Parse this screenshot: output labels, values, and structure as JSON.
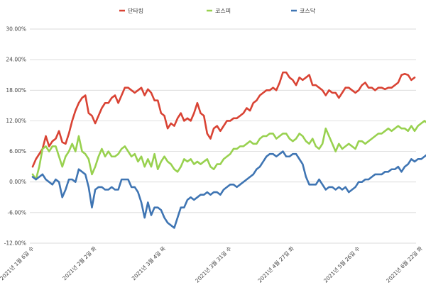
{
  "chart_data": {
    "type": "line",
    "title": "",
    "xlabel": "",
    "ylabel": "",
    "ylim": [
      -12,
      30
    ],
    "yticks": [
      -12,
      -6,
      0,
      6,
      12,
      18,
      24,
      30
    ],
    "ytick_labels": [
      "-12.00%",
      "-6.00%",
      "0.00%",
      "6.00%",
      "12.00%",
      "18.00%",
      "24.00%",
      "30.00%"
    ],
    "x_start_date": "2021-01-06",
    "xtick_labels": [
      "2021년 1월 6일 수",
      "2021년 2월 2일 화",
      "2021년 3월 4일 목",
      "2021년 3월 31일 수",
      "2021년 4월 27일 화",
      "2021년 5월 26일 수",
      "2021년 6월 22일 화"
    ],
    "grid": true,
    "legend_position": "top-center",
    "series": [
      {
        "name": "단타킹",
        "color": "#d94334",
        "values": [
          3.0,
          4.5,
          5.5,
          6.5,
          9.0,
          7.0,
          8.0,
          8.5,
          10.0,
          7.8,
          7.5,
          9.5,
          12.0,
          14.0,
          15.5,
          16.5,
          17.0,
          13.5,
          13.0,
          11.5,
          13.0,
          14.5,
          15.5,
          15.5,
          16.5,
          17.0,
          15.5,
          17.0,
          18.5,
          18.5,
          18.0,
          17.5,
          18.0,
          18.5,
          17.0,
          18.2,
          17.5,
          16.0,
          16.0,
          13.5,
          13.0,
          10.5,
          11.5,
          11.0,
          12.5,
          13.5,
          12.0,
          12.5,
          12.0,
          13.5,
          15.5,
          13.5,
          13.0,
          9.5,
          8.5,
          10.5,
          11.0,
          10.0,
          11.0,
          12.0,
          12.0,
          12.5,
          12.5,
          13.0,
          13.5,
          14.5,
          14.0,
          15.5,
          16.0,
          17.0,
          17.5,
          18.0,
          18.0,
          18.5,
          18.0,
          19.5,
          21.5,
          21.5,
          20.5,
          20.0,
          19.0,
          20.5,
          20.0,
          20.5,
          21.0,
          19.0,
          19.0,
          18.5,
          18.0,
          17.0,
          18.0,
          17.5,
          17.5,
          16.5,
          17.5,
          18.5,
          18.5,
          18.0,
          17.5,
          18.0,
          19.0,
          19.5,
          18.5,
          18.5,
          18.0,
          18.5,
          18.5,
          18.2,
          18.5,
          18.5,
          19.0,
          19.5,
          21.0,
          21.2,
          21.0,
          20.0,
          20.5
        ]
      },
      {
        "name": "코스피",
        "color": "#98d14f",
        "values": [
          1.5,
          0.5,
          3.0,
          6.5,
          7.0,
          6.0,
          7.0,
          7.0,
          5.0,
          3.0,
          5.0,
          6.0,
          7.5,
          6.0,
          9.0,
          6.0,
          5.5,
          4.5,
          1.5,
          3.0,
          5.0,
          6.5,
          5.0,
          6.0,
          5.0,
          5.0,
          5.5,
          6.5,
          7.0,
          6.0,
          5.0,
          5.5,
          4.0,
          5.0,
          3.0,
          4.5,
          3.0,
          5.5,
          2.5,
          4.0,
          5.0,
          4.0,
          3.5,
          2.5,
          2.0,
          3.0,
          4.5,
          4.0,
          4.5,
          3.5,
          4.0,
          3.5,
          4.0,
          4.5,
          3.0,
          2.5,
          3.5,
          3.5,
          4.5,
          5.0,
          5.5,
          6.5,
          6.5,
          7.0,
          7.0,
          7.5,
          8.0,
          7.5,
          7.5,
          8.5,
          9.0,
          9.0,
          9.5,
          9.5,
          8.5,
          9.0,
          9.5,
          9.5,
          8.5,
          8.0,
          8.5,
          9.5,
          9.0,
          8.0,
          7.5,
          8.5,
          7.0,
          6.5,
          7.5,
          10.5,
          9.0,
          7.5,
          6.0,
          7.5,
          6.5,
          7.0,
          7.5,
          7.0,
          6.5,
          8.0,
          8.0,
          7.5,
          8.0,
          8.5,
          9.0,
          9.5,
          9.5,
          10.0,
          10.5,
          10.0,
          10.5,
          11.0,
          10.5,
          10.5,
          10.0,
          11.0,
          10.0,
          11.0,
          11.5,
          12.0,
          11.5,
          11.5,
          11.7
        ]
      },
      {
        "name": "코스닥",
        "color": "#3f75b3",
        "values": [
          1.0,
          0.5,
          1.0,
          1.5,
          0.5,
          0.0,
          -0.5,
          0.5,
          0.0,
          -3.0,
          -1.5,
          0.5,
          0.5,
          0.0,
          2.5,
          2.0,
          1.5,
          -1.0,
          -5.0,
          -1.5,
          -1.0,
          -1.0,
          -1.5,
          -1.5,
          -1.0,
          -1.5,
          -1.5,
          0.5,
          0.5,
          0.5,
          -1.0,
          -1.0,
          -2.0,
          -4.0,
          -7.0,
          -4.0,
          -6.5,
          -5.0,
          -5.0,
          -5.5,
          -7.0,
          -8.0,
          -8.5,
          -9.0,
          -7.0,
          -5.0,
          -5.0,
          -3.5,
          -3.0,
          -3.5,
          -3.0,
          -2.5,
          -2.5,
          -2.0,
          -2.5,
          -2.0,
          -2.0,
          -2.5,
          -1.5,
          -1.0,
          -0.5,
          -0.5,
          -1.0,
          -0.5,
          0.0,
          0.5,
          1.0,
          1.5,
          2.5,
          3.0,
          4.0,
          5.0,
          5.5,
          5.5,
          5.0,
          5.5,
          6.0,
          5.0,
          5.0,
          5.5,
          5.5,
          4.5,
          3.5,
          1.0,
          -0.5,
          -0.5,
          -0.5,
          0.5,
          -0.5,
          -1.5,
          -1.0,
          -1.0,
          -1.5,
          -1.0,
          -1.5,
          -1.0,
          -2.0,
          -1.5,
          -1.0,
          0.0,
          0.0,
          0.5,
          0.5,
          1.0,
          1.5,
          1.5,
          1.5,
          2.0,
          2.0,
          2.5,
          2.5,
          3.0,
          2.0,
          3.0,
          3.5,
          4.5,
          4.0,
          4.5,
          4.5,
          5.0,
          5.5,
          6.0,
          6.5
        ]
      }
    ]
  }
}
